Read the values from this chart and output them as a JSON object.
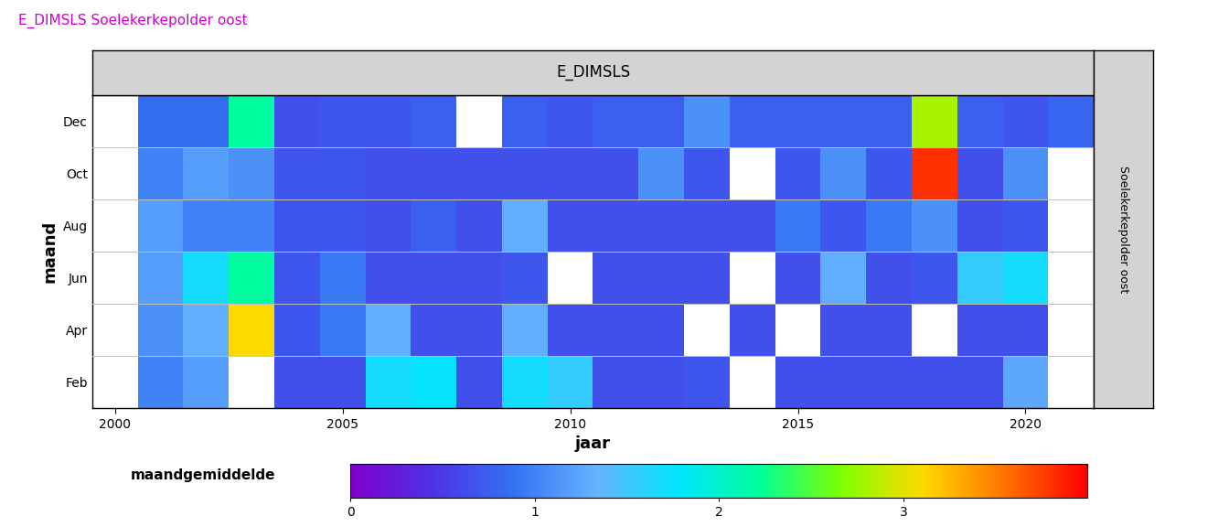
{
  "title": "E_DIMSLS Soelekerkepolder oost",
  "panel_title": "E_DIMSLS",
  "right_label": "Soelekerkepolder oost",
  "xlabel": "jaar",
  "ylabel": "maand",
  "colorbar_label": "maandgemiddelde",
  "years": [
    2000,
    2001,
    2002,
    2003,
    2004,
    2005,
    2006,
    2007,
    2008,
    2009,
    2010,
    2011,
    2012,
    2013,
    2014,
    2015,
    2016,
    2017,
    2018,
    2019,
    2020,
    2021
  ],
  "months_display": [
    "Feb",
    "Apr",
    "Jun",
    "Aug",
    "Oct",
    "Dec"
  ],
  "vmin": 0,
  "vmax": 4.0,
  "colorbar_ticks": [
    0,
    1,
    2,
    3
  ],
  "title_color": "#CC00CC",
  "header_bg": "#D3D3D3",
  "heatmap": {
    "Dec": [
      null,
      0.85,
      0.85,
      2.2,
      0.65,
      0.7,
      0.7,
      0.75,
      null,
      0.75,
      0.7,
      0.75,
      0.75,
      1.1,
      0.75,
      0.75,
      0.75,
      0.75,
      2.8,
      0.75,
      0.7,
      0.8
    ],
    "Oct": [
      null,
      1.0,
      1.2,
      1.1,
      0.7,
      0.7,
      0.65,
      0.65,
      0.65,
      0.65,
      0.65,
      0.65,
      1.1,
      0.7,
      null,
      0.7,
      1.1,
      0.7,
      3.8,
      0.65,
      1.1,
      null
    ],
    "Aug": [
      null,
      1.2,
      1.0,
      1.0,
      0.7,
      0.7,
      0.65,
      0.75,
      0.65,
      1.3,
      0.65,
      0.65,
      0.65,
      0.65,
      0.65,
      0.95,
      0.7,
      0.95,
      1.1,
      0.65,
      0.7,
      null
    ],
    "Jun": [
      null,
      1.2,
      1.7,
      2.2,
      0.7,
      0.95,
      0.65,
      0.65,
      0.65,
      0.7,
      null,
      0.65,
      0.65,
      0.65,
      null,
      0.65,
      1.3,
      0.65,
      0.7,
      1.55,
      1.7,
      null
    ],
    "Apr": [
      null,
      1.1,
      1.3,
      3.1,
      0.7,
      0.95,
      1.3,
      0.65,
      0.65,
      1.3,
      0.65,
      0.65,
      0.65,
      null,
      0.65,
      null,
      0.65,
      0.65,
      null,
      0.65,
      0.65,
      null
    ],
    "Feb": [
      null,
      1.0,
      1.2,
      null,
      0.65,
      0.65,
      1.7,
      1.75,
      0.65,
      1.7,
      1.55,
      0.65,
      0.65,
      0.7,
      null,
      0.65,
      0.65,
      0.65,
      0.65,
      0.65,
      1.25,
      null
    ]
  }
}
